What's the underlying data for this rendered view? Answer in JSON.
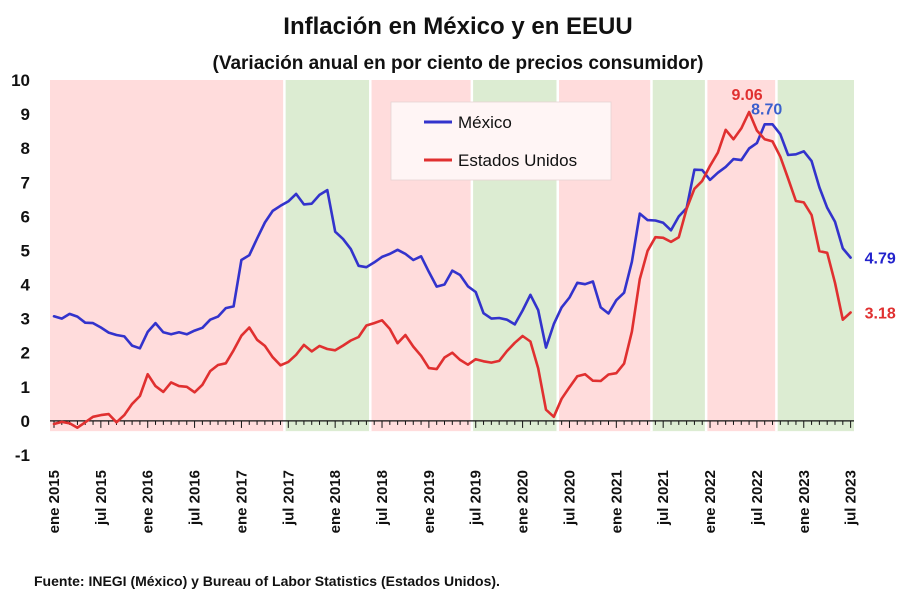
{
  "chart_data": {
    "type": "line",
    "title": "Inflación en México y en EEUU",
    "subtitle": "(Variación anual en por ciento de precios consumidor)",
    "source": "Fuente: INEGI (México) y Bureau of Labor Statistics (Estados Unidos).",
    "ylim": [
      -1,
      10
    ],
    "yticks": [
      "-1",
      "0",
      "1",
      "2",
      "3",
      "4",
      "5",
      "6",
      "7",
      "8",
      "9",
      "10"
    ],
    "xlabels": [
      "ene 2015",
      "jul 2015",
      "ene 2016",
      "jul 2016",
      "ene 2017",
      "jul 2017",
      "ene 2018",
      "jul 2018",
      "ene 2019",
      "jul 2019",
      "ene 2020",
      "jul 2020",
      "ene 2021",
      "jul 2021",
      "ene 2022",
      "jul 2022",
      "ene 2023",
      "jul 2023"
    ],
    "grid": false,
    "legend": "top-center",
    "x_start": "2015-01",
    "n_months": 103,
    "regimes": [
      {
        "from": "2015-01",
        "to": "2017-06",
        "color": "#ffdcdc"
      },
      {
        "from": "2017-07",
        "to": "2018-05",
        "color": "#dcecd2"
      },
      {
        "from": "2018-06",
        "to": "2019-06",
        "color": "#ffdcdc"
      },
      {
        "from": "2019-07",
        "to": "2020-05",
        "color": "#dcecd2"
      },
      {
        "from": "2020-06",
        "to": "2021-05",
        "color": "#ffdcdc"
      },
      {
        "from": "2021-06",
        "to": "2021-12",
        "color": "#dcecd2"
      },
      {
        "from": "2022-01",
        "to": "2022-09",
        "color": "#ffdcdc"
      },
      {
        "from": "2022-10",
        "to": "2023-07",
        "color": "#dcecd2"
      }
    ],
    "series": [
      {
        "name": "México",
        "color": "#3333cc",
        "values": [
          3.07,
          3.0,
          3.14,
          3.06,
          2.88,
          2.87,
          2.74,
          2.59,
          2.52,
          2.48,
          2.21,
          2.13,
          2.61,
          2.87,
          2.6,
          2.54,
          2.6,
          2.54,
          2.65,
          2.73,
          2.97,
          3.06,
          3.31,
          3.36,
          4.72,
          4.86,
          5.35,
          5.82,
          6.16,
          6.31,
          6.44,
          6.66,
          6.35,
          6.37,
          6.63,
          6.77,
          5.55,
          5.34,
          5.04,
          4.55,
          4.51,
          4.65,
          4.81,
          4.9,
          5.02,
          4.9,
          4.72,
          4.83,
          4.37,
          3.94,
          4.0,
          4.41,
          4.28,
          3.95,
          3.78,
          3.16,
          3.0,
          3.02,
          2.97,
          2.83,
          3.24,
          3.7,
          3.25,
          2.15,
          2.84,
          3.33,
          3.62,
          4.05,
          4.01,
          4.09,
          3.33,
          3.15,
          3.54,
          3.76,
          4.67,
          6.08,
          5.89,
          5.88,
          5.81,
          5.59,
          6.0,
          6.24,
          7.37,
          7.36,
          7.07,
          7.28,
          7.45,
          7.68,
          7.65,
          7.99,
          8.15,
          8.7,
          8.7,
          8.41,
          7.8,
          7.82,
          7.91,
          7.62,
          6.85,
          6.25,
          5.84,
          5.06,
          4.79
        ]
      },
      {
        "name": "Estados Unidos",
        "color": "#e03030",
        "values": [
          -0.09,
          -0.03,
          -0.07,
          -0.2,
          -0.04,
          0.12,
          0.17,
          0.2,
          -0.04,
          0.17,
          0.5,
          0.73,
          1.37,
          1.02,
          0.85,
          1.13,
          1.02,
          1.0,
          0.84,
          1.06,
          1.46,
          1.64,
          1.69,
          2.07,
          2.5,
          2.74,
          2.38,
          2.2,
          1.87,
          1.63,
          1.73,
          1.94,
          2.23,
          2.04,
          2.2,
          2.11,
          2.07,
          2.21,
          2.36,
          2.46,
          2.8,
          2.87,
          2.95,
          2.7,
          2.28,
          2.52,
          2.18,
          1.91,
          1.55,
          1.52,
          1.86,
          2.0,
          1.79,
          1.65,
          1.81,
          1.75,
          1.71,
          1.76,
          2.05,
          2.29,
          2.49,
          2.33,
          1.54,
          0.33,
          0.12,
          0.65,
          0.99,
          1.31,
          1.37,
          1.18,
          1.17,
          1.36,
          1.4,
          1.68,
          2.62,
          4.16,
          4.99,
          5.39,
          5.37,
          5.25,
          5.39,
          6.22,
          6.81,
          7.04,
          7.48,
          7.87,
          8.54,
          8.26,
          8.58,
          9.06,
          8.52,
          8.26,
          8.2,
          7.75,
          7.11,
          6.45,
          6.41,
          6.04,
          4.98,
          4.93,
          4.05,
          2.97,
          3.18
        ]
      }
    ],
    "annotations": [
      {
        "text": "9.06",
        "series": 1,
        "index": 89,
        "color": "#e03030"
      },
      {
        "text": "8.70",
        "series": 0,
        "index": 91,
        "color": "#3a5fcd"
      },
      {
        "text": "4.79",
        "series": 0,
        "index": 102,
        "color": "#2222cc"
      },
      {
        "text": "3.18",
        "series": 1,
        "index": 102,
        "color": "#e03030"
      }
    ]
  }
}
